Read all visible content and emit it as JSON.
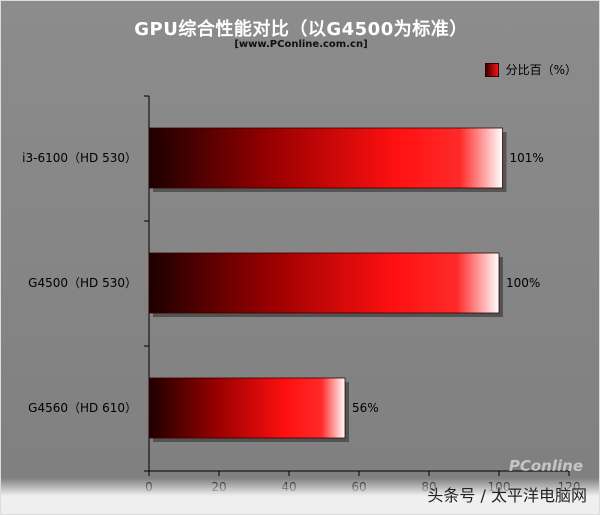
{
  "chart_data": {
    "type": "bar",
    "orientation": "horizontal",
    "title": "GPU综合性能对比（以G4500为标准）",
    "subtitle": "[www.PConline.com.cn]",
    "categories": [
      "i3-6100（HD 530）",
      "G4500（HD 530）",
      "G4560（HD 610）"
    ],
    "series": [
      {
        "name": "分比百（%）",
        "values": [
          101,
          100,
          56
        ]
      }
    ],
    "data_labels": [
      "101%",
      "100%",
      "56%"
    ],
    "xlim": [
      0,
      120
    ],
    "x_ticks": [
      0,
      20,
      40,
      60,
      80,
      100,
      120
    ],
    "x_tick_labels": [
      "0",
      "20",
      "40",
      "60",
      "80",
      "100",
      "120"
    ],
    "legend_position": "top-right",
    "grid": false,
    "colors": {
      "bar_start": "#1c0000",
      "bar_mid": "#ff1010",
      "bar_end": "#ffffff",
      "background": "#858585"
    }
  },
  "watermark": "PConline",
  "credit": "头条号 / 太平洋电脑网"
}
